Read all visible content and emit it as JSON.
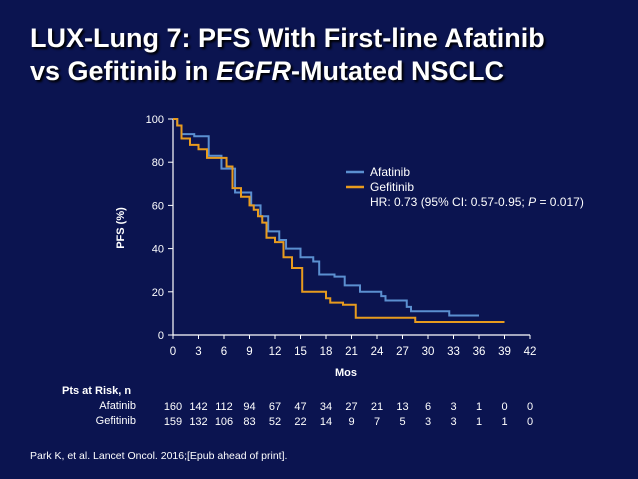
{
  "slide": {
    "title_line1": "LUX-Lung 7: PFS With First-line Afatinib",
    "title_line2_pre": "vs Gefitinib in ",
    "title_line2_it": "EGFR",
    "title_line2_post": "-Mutated NSCLC",
    "citation": "Park K, et al. Lancet Oncol. 2016;[Epub ahead of print]."
  },
  "chart_data": {
    "type": "line",
    "xlabel": "Mos",
    "ylabel": "PFS (%)",
    "xlim": [
      0,
      42
    ],
    "ylim": [
      0,
      100
    ],
    "xticks": [
      0,
      3,
      6,
      9,
      12,
      15,
      18,
      21,
      24,
      27,
      30,
      33,
      36,
      39,
      42
    ],
    "yticks": [
      0,
      20,
      40,
      60,
      80,
      100
    ],
    "grid": false,
    "legend_position": "right",
    "series": [
      {
        "name": "Afatinib",
        "color": "#5b8fd0",
        "points": [
          [
            0,
            100
          ],
          [
            0.5,
            97
          ],
          [
            1,
            93
          ],
          [
            2,
            93
          ],
          [
            2.5,
            92
          ],
          [
            4,
            92
          ],
          [
            4.2,
            83
          ],
          [
            5.5,
            83
          ],
          [
            5.7,
            77
          ],
          [
            7,
            77
          ],
          [
            7.3,
            66
          ],
          [
            9,
            66
          ],
          [
            9.2,
            60
          ],
          [
            10,
            60
          ],
          [
            10.3,
            55
          ],
          [
            11,
            55
          ],
          [
            11.2,
            48
          ],
          [
            12,
            48
          ],
          [
            12.5,
            44
          ],
          [
            13,
            44
          ],
          [
            13.3,
            40
          ],
          [
            14,
            40
          ],
          [
            14.3,
            40
          ],
          [
            15,
            36
          ],
          [
            16,
            36
          ],
          [
            16.5,
            34
          ],
          [
            17,
            34
          ],
          [
            17.2,
            28
          ],
          [
            18.5,
            28
          ],
          [
            19,
            27
          ],
          [
            20,
            27
          ],
          [
            20.2,
            23
          ],
          [
            21.5,
            23
          ],
          [
            22,
            20
          ],
          [
            24,
            20
          ],
          [
            24.5,
            18
          ],
          [
            25,
            16
          ],
          [
            27,
            16
          ],
          [
            27.5,
            13
          ],
          [
            28,
            11
          ],
          [
            32,
            11
          ],
          [
            32.5,
            9
          ],
          [
            36,
            9
          ]
        ]
      },
      {
        "name": "Gefitinib",
        "color": "#e89b1e",
        "points": [
          [
            0,
            100
          ],
          [
            0.5,
            97
          ],
          [
            1,
            91
          ],
          [
            2,
            88
          ],
          [
            3,
            86
          ],
          [
            4,
            82
          ],
          [
            6,
            82
          ],
          [
            6.3,
            78
          ],
          [
            7,
            68
          ],
          [
            8,
            64
          ],
          [
            9,
            60
          ],
          [
            9.5,
            58
          ],
          [
            10,
            55
          ],
          [
            10.5,
            52
          ],
          [
            11,
            45
          ],
          [
            12,
            43
          ],
          [
            13,
            36
          ],
          [
            14,
            31
          ],
          [
            15,
            31
          ],
          [
            15.2,
            20
          ],
          [
            17.5,
            20
          ],
          [
            18,
            17
          ],
          [
            18.5,
            15
          ],
          [
            20,
            14
          ],
          [
            21,
            14
          ],
          [
            21.5,
            8
          ],
          [
            28,
            8
          ],
          [
            28.5,
            6
          ],
          [
            39,
            6
          ]
        ]
      }
    ],
    "annotation": {
      "text_pre": "HR: 0.73 (95% CI: 0.57-0.95; ",
      "text_it": "P",
      "text_post": " = 0.017)"
    }
  },
  "risk_table": {
    "title": "Pts at Risk, n",
    "rows": [
      {
        "label": "Afatinib",
        "values": [
          "160",
          "142",
          "112",
          "94",
          "67",
          "47",
          "34",
          "27",
          "21",
          "13",
          "6",
          "3",
          "1",
          "0",
          "0"
        ]
      },
      {
        "label": "Gefitinib",
        "values": [
          "159",
          "132",
          "106",
          "83",
          "52",
          "22",
          "14",
          "9",
          "7",
          "5",
          "3",
          "3",
          "1",
          "1",
          "0"
        ]
      }
    ]
  }
}
